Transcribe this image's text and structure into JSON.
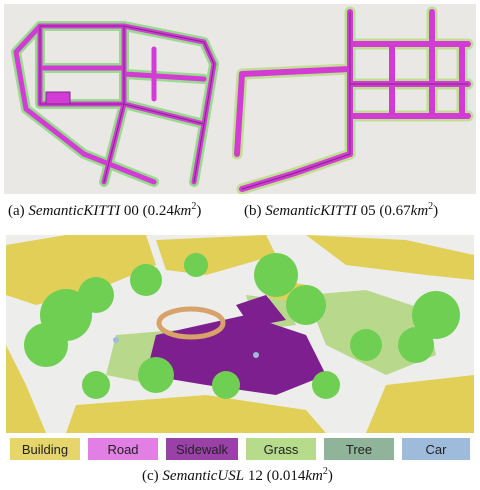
{
  "panels": {
    "a": {
      "prefix": "(a) ",
      "dataset": "SemanticKITTI",
      "suffix": " 00 (0.24",
      "unit": "km",
      "exp": "2",
      "close": ")"
    },
    "b": {
      "prefix": "(b) ",
      "dataset": "SemanticKITTI",
      "suffix": " 05 (0.67",
      "unit": "km",
      "exp": "2",
      "close": ")"
    },
    "c": {
      "prefix": "(c) ",
      "dataset": "SemanticUSL",
      "suffix": " 12 (0.014",
      "unit": "km",
      "exp": "2",
      "close": ")"
    }
  },
  "legend": [
    {
      "label": "Building",
      "color": "#e6d56a"
    },
    {
      "label": "Road",
      "color": "#e27fe5"
    },
    {
      "label": "Sidewalk",
      "color": "#9a41a8"
    },
    {
      "label": "Grass",
      "color": "#b6db8a"
    },
    {
      "label": "Tree",
      "color": "#8fb49a"
    },
    {
      "label": "Car",
      "color": "#9fbbdc"
    }
  ],
  "colors": {
    "road": "#d23bd4",
    "road_edge": "#7a2a86",
    "vegetation": "#4fd43a",
    "building": "#e2cf57",
    "sidewalk": "#7e1f8f",
    "grass": "#b8d98c",
    "tree": "#6ecf52"
  }
}
